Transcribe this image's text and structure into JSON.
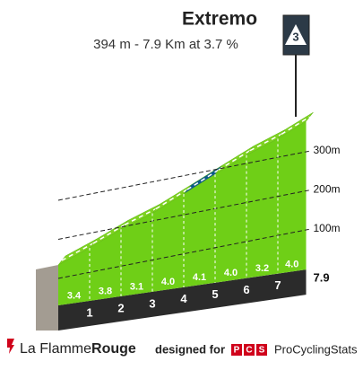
{
  "chart_data": {
    "type": "climb",
    "title": "Extremo",
    "subtitle": "394 m - 7.9 Km at 3.7 %",
    "category": "3",
    "km_ticks": [
      1,
      2,
      3,
      4,
      5,
      6,
      7,
      7.9
    ],
    "values": [
      3.4,
      3.8,
      3.1,
      4.0,
      4.1,
      4.0,
      3.2,
      4.0
    ],
    "value_labels": [
      "3.4",
      "3.8",
      "3.1",
      "4.0",
      "4.1",
      "4.0",
      "3.2",
      "4.0"
    ],
    "colors": [
      "#7ed321",
      "#7ed321",
      "#7ed321",
      "#7ed321",
      "#0d5b8a",
      "#7ed321",
      "#7ed321",
      "#7ed321"
    ],
    "ylim": [
      0,
      400
    ],
    "yticks": [
      {
        "value": 100,
        "label": "100m"
      },
      {
        "value": 200,
        "label": "200m"
      },
      {
        "value": 300,
        "label": "300m"
      }
    ]
  },
  "footer": {
    "brand_prefix": "La Flamme",
    "brand_suffix": "Rouge",
    "designed_for": "designed for",
    "pcs_badge": [
      "P",
      "C",
      "S"
    ],
    "pcs_name": "ProCyclingStats"
  }
}
